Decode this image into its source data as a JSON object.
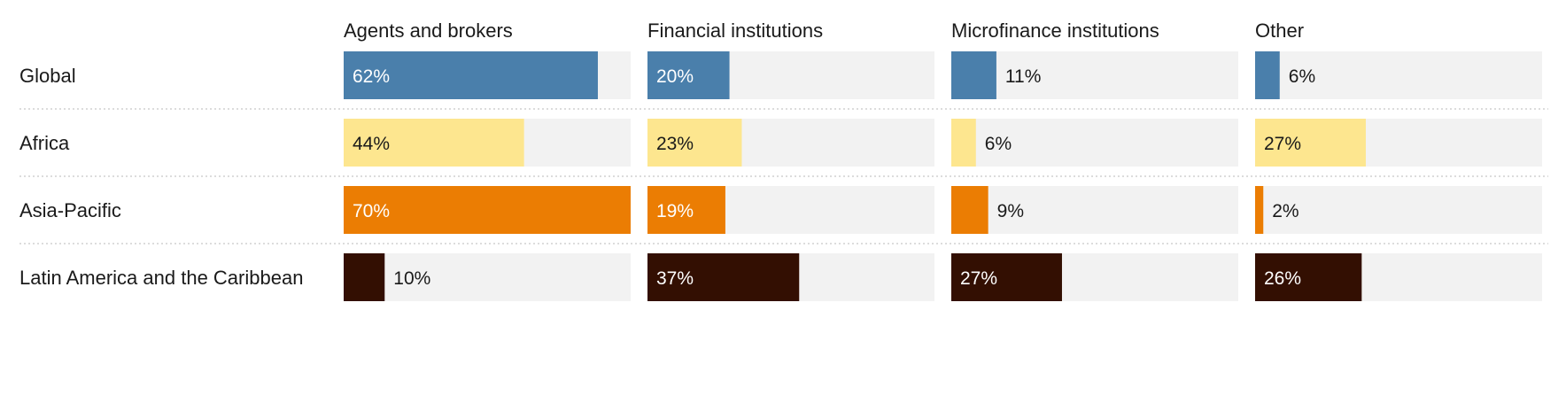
{
  "chart_data": {
    "type": "bar",
    "layout": "small-multiples-horizontal-bars",
    "categories": [
      "Agents and brokers",
      "Financial institutions",
      "Microfinance institutions",
      "Other"
    ],
    "value_format": "percent",
    "xlim": [
      0,
      70
    ],
    "series": [
      {
        "name": "Global",
        "color": "#4a7fab",
        "label_color_inside": "#ffffff",
        "values": [
          62,
          20,
          11,
          6
        ]
      },
      {
        "name": "Africa",
        "color": "#fde68f",
        "label_color_inside": "#1a1a1a",
        "values": [
          44,
          23,
          6,
          27
        ]
      },
      {
        "name": "Asia-Pacific",
        "color": "#eb7d03",
        "label_color_inside": "#ffffff",
        "values": [
          70,
          19,
          9,
          2
        ]
      },
      {
        "name": "Latin America and the Caribbean",
        "color": "#330f02",
        "label_color_inside": "#ffffff",
        "values": [
          10,
          37,
          27,
          26
        ]
      }
    ],
    "track_color": "#f2f2f2",
    "outside_label_color": "#1a1a1a",
    "grid": false
  }
}
